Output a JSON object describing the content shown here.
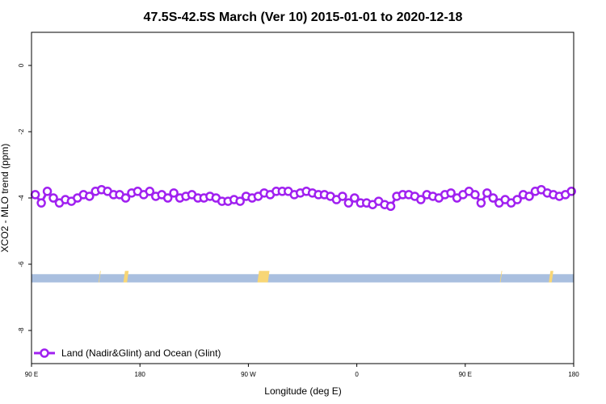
{
  "chart_data": {
    "type": "line",
    "title": "47.5S-42.5S March (Ver 10)   2015-01-01 to 2020-12-18",
    "xlabel": "Longitude (deg E)",
    "ylabel": "XCO2 - MLO trend (ppm)",
    "xlim": [
      90,
      450
    ],
    "ylim": [
      -9.0,
      1.0
    ],
    "x_ticks": [
      {
        "value": 90,
        "label": "90 E"
      },
      {
        "value": 162,
        "label": "180"
      },
      {
        "value": 234,
        "label": "90 W"
      },
      {
        "value": 306,
        "label": "0"
      },
      {
        "value": 378,
        "label": "90 E"
      },
      {
        "value": 450,
        "label": "180"
      }
    ],
    "y_ticks": [
      {
        "value": 0,
        "label": "0"
      },
      {
        "value": -2,
        "label": "-2"
      },
      {
        "value": -4,
        "label": "-4"
      },
      {
        "value": -6,
        "label": "-6"
      },
      {
        "value": -8,
        "label": "-8"
      }
    ],
    "legend": {
      "position": "bottom-left",
      "entries": [
        "Land (Nadir&Glint) and Ocean (Glint)"
      ]
    },
    "colors": {
      "series": "#a020f0",
      "ocean_band": "#a9bfdf",
      "land_band": "#f8d675"
    },
    "series": [
      {
        "name": "Land (Nadir&Glint) and Ocean (Glint)",
        "x": [
          92.5,
          96.5,
          100.5,
          104.5,
          108.5,
          112.5,
          116.5,
          120.5,
          124.5,
          128.5,
          132.5,
          136.5,
          140.5,
          144.5,
          148.5,
          152.5,
          156.5,
          160.5,
          164.5,
          168.5,
          172.5,
          176.5,
          180.5,
          184.5,
          188.5,
          192.5,
          196.5,
          200.5,
          204.5,
          208.5,
          212.5,
          216.5,
          220.5,
          224.5,
          228.5,
          232.5,
          236.5,
          240.5,
          244.5,
          248.5,
          252.5,
          256.5,
          260.5,
          264.5,
          268.5,
          272.5,
          276.5,
          280.5,
          284.5,
          288.5,
          292.5,
          296.5,
          300.5,
          304.5,
          308.5,
          312.5,
          316.5,
          320.5,
          324.5,
          328.5,
          332.5,
          336.5,
          340.5,
          344.5,
          348.5,
          352.5,
          356.5,
          360.5,
          364.5,
          368.5,
          372.5,
          376.5,
          380.5,
          384.5,
          388.5,
          392.5,
          396.5,
          400.5,
          404.5,
          408.5,
          412.5,
          416.5,
          420.5,
          424.5,
          428.5,
          432.5,
          436.5,
          440.5,
          444.5,
          448.5
        ],
        "y": [
          -3.9,
          -4.15,
          -3.8,
          -4.0,
          -4.15,
          -4.05,
          -4.1,
          -4.0,
          -3.9,
          -3.95,
          -3.8,
          -3.75,
          -3.8,
          -3.9,
          -3.9,
          -4.0,
          -3.85,
          -3.8,
          -3.9,
          -3.8,
          -3.95,
          -3.9,
          -4.0,
          -3.85,
          -4.0,
          -3.95,
          -3.9,
          -4.0,
          -4.0,
          -3.95,
          -4.0,
          -4.1,
          -4.1,
          -4.05,
          -4.1,
          -3.95,
          -4.0,
          -3.95,
          -3.85,
          -3.9,
          -3.8,
          -3.8,
          -3.8,
          -3.9,
          -3.85,
          -3.8,
          -3.85,
          -3.9,
          -3.9,
          -3.95,
          -4.05,
          -3.95,
          -4.15,
          -4.0,
          -4.15,
          -4.15,
          -4.2,
          -4.1,
          -4.2,
          -4.25,
          -3.95,
          -3.9,
          -3.9,
          -3.95,
          -4.05,
          -3.9,
          -3.95,
          -4.0,
          -3.9,
          -3.85,
          -4.0,
          -3.9,
          -3.8,
          -3.9,
          -4.15,
          -3.85,
          -4.0,
          -4.15,
          -4.05,
          -4.15,
          -4.05,
          -3.9,
          -3.95,
          -3.8,
          -3.75,
          -3.85,
          -3.9,
          -3.95,
          -3.9,
          -3.8
        ]
      }
    ],
    "band": {
      "y_range": [
        -6.55,
        -6.3
      ],
      "land_ranges": [
        [
          134.5,
          136.0
        ],
        [
          151.0,
          154.5
        ],
        [
          240.0,
          248.0
        ],
        [
          401.0,
          402.5
        ],
        [
          433.5,
          436.5
        ]
      ]
    }
  }
}
